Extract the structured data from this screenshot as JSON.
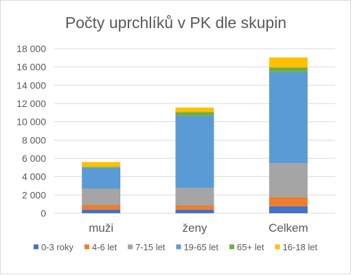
{
  "chart_data": {
    "type": "bar",
    "stacked": true,
    "title": "Počty uprchlíků v PK dle skupin",
    "categories": [
      "muži",
      "ženy",
      "Celkem"
    ],
    "series": [
      {
        "name": "0-3 roky",
        "color": "#4472C4",
        "values": [
          380,
          380,
          760
        ]
      },
      {
        "name": "4-6 let",
        "color": "#ED7D31",
        "values": [
          520,
          480,
          1000
        ]
      },
      {
        "name": "7-15 let",
        "color": "#A5A5A5",
        "values": [
          1800,
          1900,
          3700
        ]
      },
      {
        "name": "19-65 let",
        "color": "#5B9BD5",
        "values": [
          2300,
          7900,
          10000
        ]
      },
      {
        "name": "65+ let",
        "color": "#70AD47",
        "values": [
          80,
          400,
          480
        ]
      },
      {
        "name": "16-18 let",
        "color": "#FFC000",
        "values": [
          520,
          500,
          1100
        ]
      }
    ],
    "y_ticks": [
      "0",
      "2 000",
      "4 000",
      "6 000",
      "8 000",
      "10 000",
      "12 000",
      "14 000",
      "16 000",
      "18 000"
    ],
    "ylim": [
      0,
      18000
    ],
    "y_step": 2000,
    "grid": true,
    "legend_position": "bottom",
    "colors": {
      "gridline": "#d9d9d9",
      "axis_line": "#d9d9d9",
      "title_text": "#595959",
      "tick_text": "#595959"
    }
  }
}
